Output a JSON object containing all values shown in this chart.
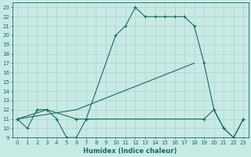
{
  "xlabel": "Humidex (Indice chaleur)",
  "xlim": [
    -0.5,
    23.5
  ],
  "ylim": [
    9,
    23.5
  ],
  "xticks": [
    0,
    1,
    2,
    3,
    4,
    5,
    6,
    7,
    8,
    9,
    10,
    11,
    12,
    13,
    14,
    15,
    16,
    17,
    18,
    19,
    20,
    21,
    22,
    23
  ],
  "yticks": [
    9,
    10,
    11,
    12,
    13,
    14,
    15,
    16,
    17,
    18,
    19,
    20,
    21,
    22,
    23
  ],
  "bg_color": "#c8eae4",
  "line_color": "#1a6b5e",
  "grid_color": "#b0d8d0",
  "line1_x": [
    0,
    1,
    2,
    3,
    4,
    5,
    6,
    7,
    10,
    11,
    12,
    13,
    14,
    15,
    16,
    17,
    18,
    19,
    20,
    21,
    22,
    23
  ],
  "line1_y": [
    11,
    10,
    12,
    12,
    11,
    9,
    9,
    11,
    20,
    21,
    23,
    22,
    22,
    22,
    22,
    22,
    21,
    17,
    12,
    10,
    9,
    11
  ],
  "line2_x": [
    0,
    3,
    6,
    19,
    20,
    21,
    22,
    23
  ],
  "line2_y": [
    11,
    12,
    11,
    11,
    12,
    10,
    9,
    11
  ],
  "line3_x": [
    0,
    6,
    18
  ],
  "line3_y": [
    11,
    12,
    17
  ]
}
